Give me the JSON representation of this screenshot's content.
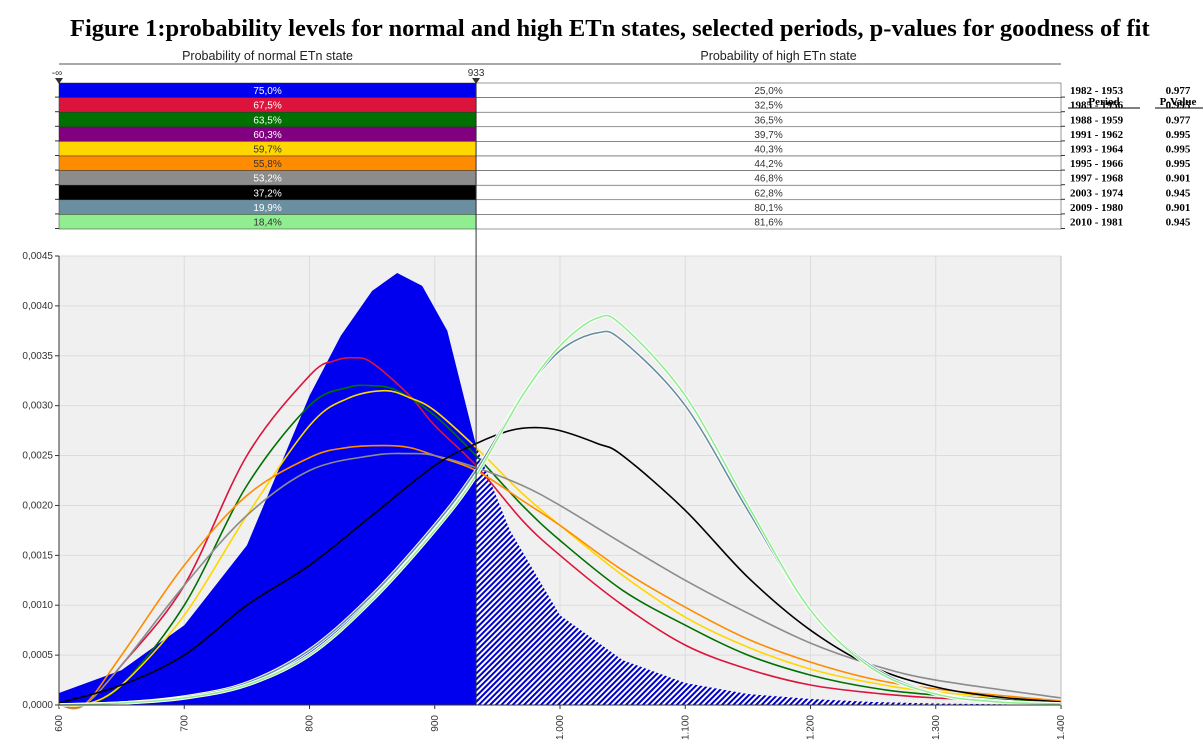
{
  "title": "Figure 1:probability levels for normal and high ETn states, selected periods, p-values for goodness of fit",
  "header": {
    "normal_label": "Probability of normal ETn state",
    "high_label": "Probability of high ETn state",
    "left_marker": "-∞",
    "threshold_marker": "933"
  },
  "table": {
    "period_header": "Period",
    "pvalue_header": "P-Value"
  },
  "chart_data": {
    "type": "line",
    "threshold": 933,
    "xlim": [
      600,
      1400
    ],
    "ylim": [
      0,
      0.0045
    ],
    "x_ticks": [
      "600",
      "700",
      "800",
      "900",
      "1.000",
      "1.100",
      "1.200",
      "1.300",
      "1.400"
    ],
    "y_ticks": [
      "0,0000",
      "0,0005",
      "0,0010",
      "0,0015",
      "0,0020",
      "0,0025",
      "0,0030",
      "0,0035",
      "0,0040",
      "0,0045"
    ],
    "filled_density": {
      "color": "#0000ee",
      "x": [
        600,
        650,
        700,
        750,
        800,
        825,
        850,
        870,
        890,
        910,
        933,
        960,
        1000,
        1050,
        1100,
        1150,
        1200,
        1250,
        1300,
        1350,
        1400
      ],
      "y": [
        0.00012,
        0.00035,
        0.0008,
        0.0016,
        0.0031,
        0.0037,
        0.00415,
        0.00433,
        0.0042,
        0.00375,
        0.0026,
        0.00175,
        0.0009,
        0.00045,
        0.00022,
        0.00011,
        6e-05,
        3e-05,
        1.5e-05,
        8e-06,
        4e-06
      ]
    },
    "series": [
      {
        "color": "#dc143c",
        "normal": "67,5%",
        "high": "32,5%",
        "period": "1985  -  1956",
        "pvalue": "0.995",
        "x": [
          600,
          620,
          650,
          700,
          750,
          800,
          820,
          835,
          850,
          880,
          900,
          933,
          970,
          1000,
          1050,
          1100,
          1150,
          1200,
          1250,
          1300,
          1400
        ],
        "y": [
          0,
          0,
          0.0004,
          0.0012,
          0.0025,
          0.0033,
          0.00345,
          0.00348,
          0.00343,
          0.0031,
          0.0028,
          0.0024,
          0.00185,
          0.0015,
          0.001,
          0.0006,
          0.00036,
          0.0002,
          0.00012,
          7e-05,
          2e-05
        ]
      },
      {
        "color": "#007000",
        "normal": "63,5%",
        "high": "36,5%",
        "period": "1988  -  1959",
        "pvalue": "0.977",
        "x": [
          600,
          620,
          650,
          700,
          750,
          800,
          830,
          850,
          870,
          900,
          933,
          970,
          1000,
          1050,
          1100,
          1150,
          1200,
          1250,
          1300,
          1400
        ],
        "y": [
          0,
          0,
          0.0002,
          0.001,
          0.0022,
          0.003,
          0.00318,
          0.0032,
          0.00315,
          0.0029,
          0.0025,
          0.002,
          0.00165,
          0.00115,
          0.0008,
          0.0005,
          0.0003,
          0.00017,
          0.0001,
          2e-05
        ]
      },
      {
        "color": "#800080",
        "normal": "60,3%",
        "high": "39,7%",
        "period": "1991  -  1962",
        "pvalue": "0.995",
        "x": [],
        "y": []
      },
      {
        "color": "#ffd700",
        "normal": "59,7%",
        "high": "40,3%",
        "period": "1993  -  1964",
        "pvalue": "0.995",
        "x": [
          600,
          620,
          650,
          700,
          750,
          800,
          830,
          860,
          880,
          900,
          933,
          970,
          1000,
          1050,
          1100,
          1150,
          1200,
          1250,
          1300,
          1400
        ],
        "y": [
          0,
          0,
          0.0002,
          0.0009,
          0.0019,
          0.0028,
          0.00307,
          0.00315,
          0.00308,
          0.00295,
          0.00258,
          0.00212,
          0.0018,
          0.0013,
          0.00088,
          0.00058,
          0.00036,
          0.00022,
          0.00013,
          3e-05
        ]
      },
      {
        "color": "#ff8c00",
        "normal": "55,8%",
        "high": "44,2%",
        "period": "1995  -  1966",
        "pvalue": "0.995",
        "x": [
          600,
          620,
          650,
          700,
          750,
          800,
          830,
          860,
          880,
          900,
          933,
          970,
          1000,
          1050,
          1100,
          1150,
          1200,
          1250,
          1300,
          1400
        ],
        "y": [
          0,
          0,
          0.0005,
          0.0014,
          0.0021,
          0.00248,
          0.00258,
          0.0026,
          0.00258,
          0.0025,
          0.00235,
          0.00205,
          0.0018,
          0.00135,
          0.00098,
          0.00066,
          0.00043,
          0.00026,
          0.00016,
          4e-05
        ]
      },
      {
        "color": "#8c8c8c",
        "normal": "53,2%",
        "high": "46,8%",
        "period": "1997  -  1968",
        "pvalue": "0.901",
        "x": [
          600,
          620,
          650,
          700,
          750,
          800,
          850,
          880,
          900,
          933,
          970,
          1000,
          1050,
          1100,
          1150,
          1200,
          1250,
          1300,
          1400
        ],
        "y": [
          0,
          0,
          0.0004,
          0.0012,
          0.0019,
          0.00235,
          0.0025,
          0.00252,
          0.0025,
          0.00238,
          0.0022,
          0.002,
          0.00162,
          0.00125,
          0.00092,
          0.00062,
          0.0004,
          0.00025,
          7e-05
        ]
      },
      {
        "color": "#000000",
        "normal": "37,2%",
        "high": "62,8%",
        "period": "2003  -  1974",
        "pvalue": "0.945",
        "x": [
          600,
          650,
          700,
          750,
          800,
          850,
          900,
          933,
          960,
          980,
          1000,
          1030,
          1050,
          1100,
          1150,
          1200,
          1250,
          1300,
          1350,
          1400
        ],
        "y": [
          2e-05,
          0.0002,
          0.0005,
          0.001,
          0.0014,
          0.0019,
          0.0024,
          0.00262,
          0.00275,
          0.00278,
          0.00275,
          0.00262,
          0.0025,
          0.00195,
          0.00128,
          0.00075,
          0.00038,
          0.00018,
          8e-05,
          3e-05
        ]
      },
      {
        "color": "#6a8fa0",
        "normal": "19,9%",
        "high": "80,1%",
        "period": "2009  -  1980",
        "pvalue": "0.901",
        "x": [
          600,
          650,
          700,
          750,
          800,
          850,
          900,
          933,
          970,
          1000,
          1030,
          1050,
          1100,
          1150,
          1200,
          1250,
          1300,
          1350,
          1400
        ],
        "y": [
          0,
          2e-05,
          8e-05,
          0.00022,
          0.00055,
          0.0011,
          0.0018,
          0.00235,
          0.0031,
          0.00355,
          0.00373,
          0.00365,
          0.003,
          0.00195,
          0.00095,
          0.00038,
          0.00012,
          4e-05,
          1e-05
        ]
      },
      {
        "color": "#90ee90",
        "normal": "18,4%",
        "high": "81,6%",
        "period": "2010  -  1981",
        "pvalue": "0.945",
        "x": [
          600,
          650,
          700,
          750,
          800,
          850,
          900,
          933,
          970,
          1000,
          1030,
          1050,
          1100,
          1150,
          1200,
          1250,
          1300,
          1350,
          1400
        ],
        "y": [
          0,
          2e-05,
          7e-05,
          0.0002,
          0.0005,
          0.00105,
          0.00175,
          0.0023,
          0.0031,
          0.0036,
          0.00388,
          0.0038,
          0.0031,
          0.002,
          0.00095,
          0.00036,
          0.00011,
          3e-05,
          1e-05
        ]
      },
      {
        "color": "#0000ee",
        "normal": "75,0%",
        "high": "25,0%",
        "period": "1982  -  1953",
        "pvalue": "0.977",
        "x": [],
        "y": []
      }
    ]
  }
}
